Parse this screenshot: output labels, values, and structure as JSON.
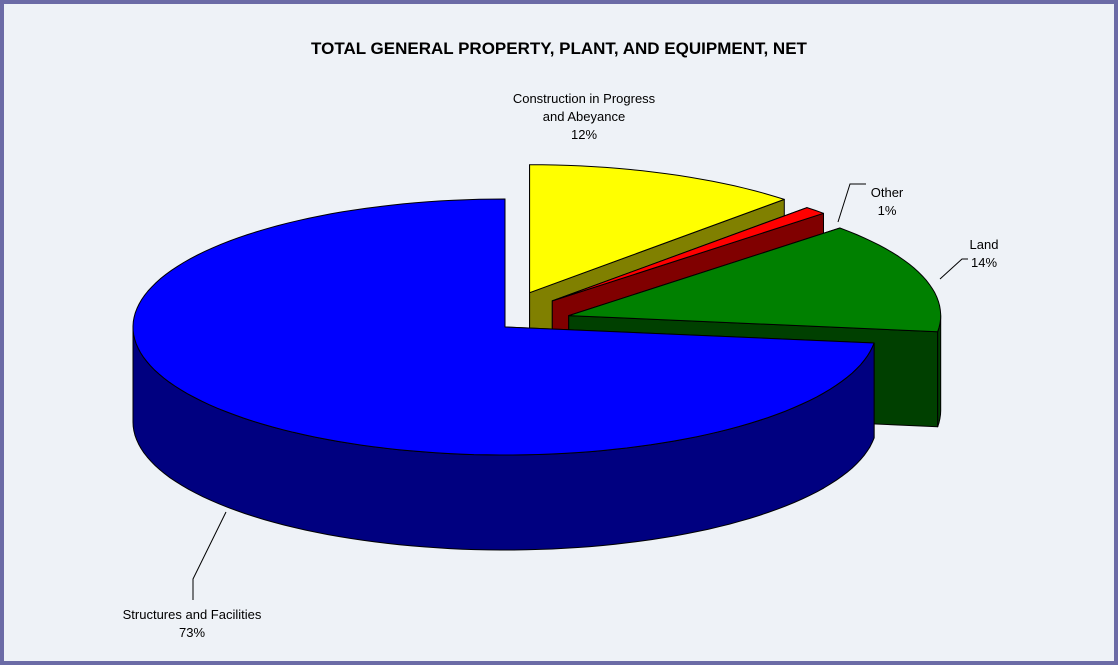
{
  "chart_data": {
    "type": "pie3d",
    "title": "TOTAL GENERAL PROPERTY, PLANT, AND EQUIPMENT, NET",
    "categories": [
      "Construction in Progress and Abeyance",
      "Other",
      "Land",
      "Structures and Facilities"
    ],
    "values": [
      12,
      1,
      14,
      73
    ],
    "value_labels": [
      "12%",
      "1%",
      "14%",
      "73%"
    ],
    "colors": [
      "#ffff00",
      "#ff0000",
      "#008000",
      "#0000ff"
    ],
    "side_colors": [
      "#808000",
      "#800000",
      "#004000",
      "#000080"
    ],
    "exploded": [
      true,
      true,
      true,
      false
    ]
  }
}
